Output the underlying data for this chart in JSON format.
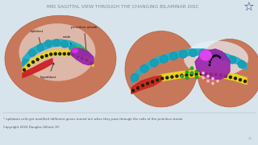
{
  "title": "MID SAGITTAL VIEW THROUGH THE CHANGING BILAMINAR DISC",
  "title_color": "#888888",
  "slide_bg": "#d8e4ec",
  "footnote1": "* epiblasts cells get modified (different genes turned on) when they pass through the cells of the primitive streak.",
  "footnote2": "Copyright 2020 Douglas Gillard, DC",
  "page_num": "22",
  "body_color": "#c8785a",
  "body_edge": "#b06040",
  "epiblast_color": "#20b0c8",
  "hypo_color": "#e8d820",
  "hypo_dot_color": "#222200",
  "red_color": "#cc2222",
  "purple_color": "#9922aa",
  "node_color": "#cc44dd",
  "green_color": "#44bb22",
  "white_inner": "#f0ece8",
  "label_color": "#111111",
  "arrow_color": "#111111",
  "star_color": "#1a3a8a",
  "pink_dot": "#ffbbdd",
  "green_dot": "#22aa22",
  "blue_bg_right": "#c0d8e8"
}
